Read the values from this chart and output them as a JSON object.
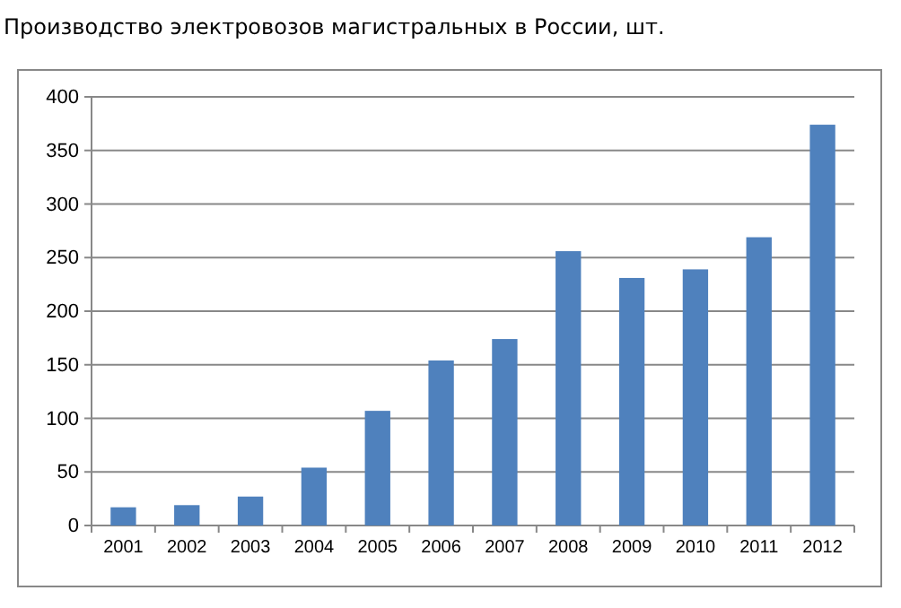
{
  "chart_data": {
    "type": "bar",
    "title": "Производство электровозов магистральных в России, шт.",
    "categories": [
      "2001",
      "2002",
      "2003",
      "2004",
      "2005",
      "2006",
      "2007",
      "2008",
      "2009",
      "2010",
      "2011",
      "2012"
    ],
    "values": [
      17,
      19,
      27,
      54,
      107,
      154,
      174,
      256,
      231,
      239,
      269,
      374
    ],
    "color": "#4f81bd",
    "ylim": [
      0,
      400
    ],
    "yticks": [
      0,
      50,
      100,
      150,
      200,
      250,
      300,
      350,
      400
    ],
    "grid": "y"
  }
}
